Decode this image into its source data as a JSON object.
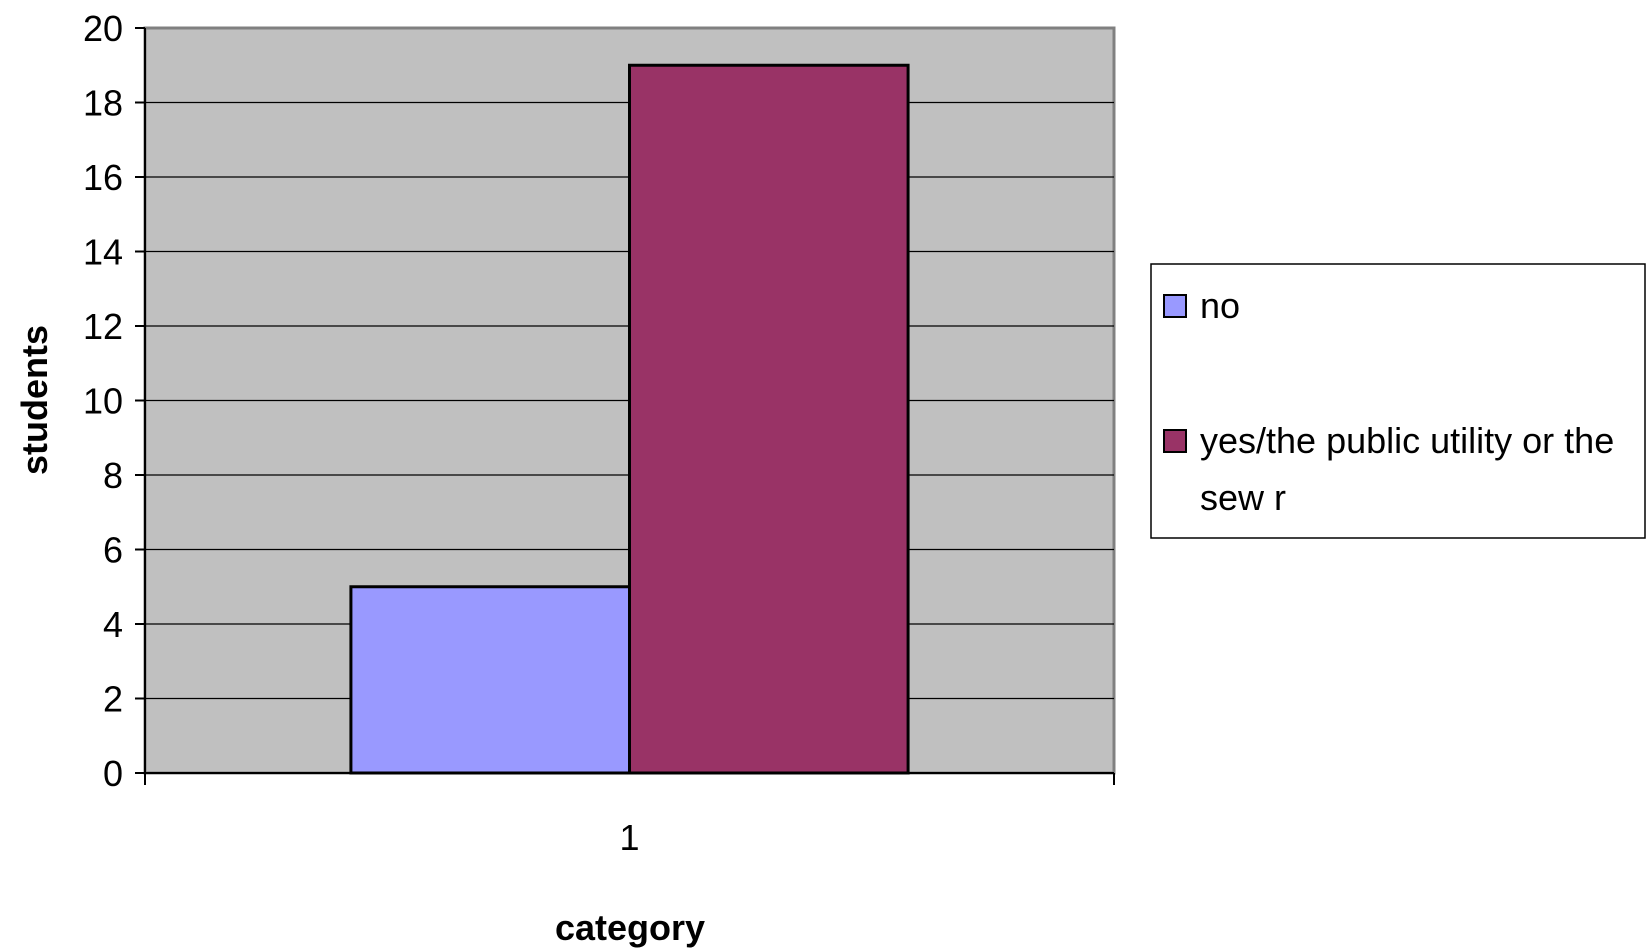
{
  "chart_data": {
    "type": "bar",
    "categories": [
      "1"
    ],
    "series": [
      {
        "name": "no",
        "values": [
          5
        ],
        "color": "#9999ff"
      },
      {
        "name": "yes/the public utility or the sew r",
        "values": [
          19
        ],
        "color": "#993366"
      }
    ],
    "xlabel": "category",
    "ylabel": "students",
    "ylim": [
      0,
      20
    ],
    "yticks": [
      0,
      2,
      4,
      6,
      8,
      10,
      12,
      14,
      16,
      18,
      20
    ],
    "grid": true,
    "legend_position": "right",
    "plot_background": "#c0c0c0",
    "legend": {
      "entries": [
        {
          "lines": [
            "no"
          ]
        },
        {
          "lines": [
            "yes/the public utility or the",
            "sew r"
          ]
        }
      ]
    }
  }
}
